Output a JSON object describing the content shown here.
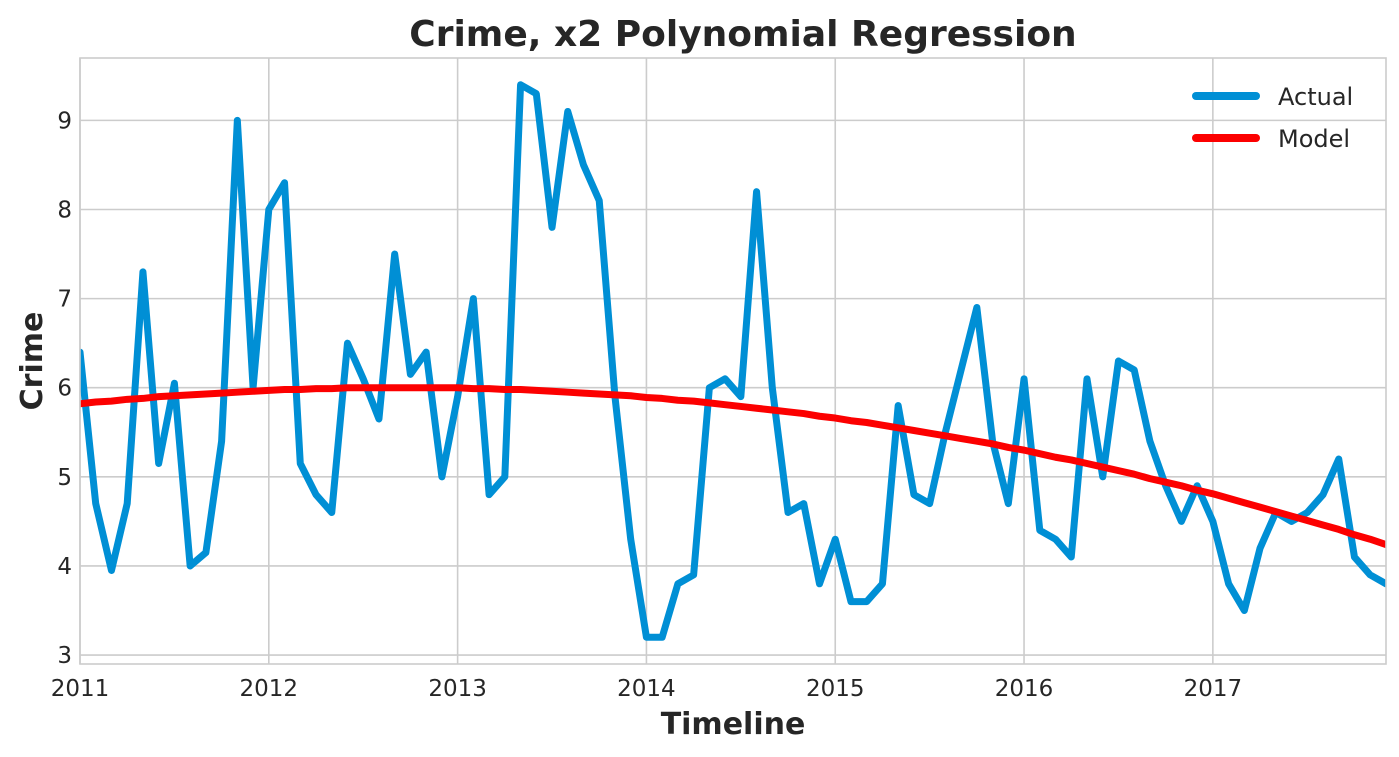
{
  "chart_data": {
    "type": "line",
    "title": "Crime, x2 Polynomial Regression",
    "xlabel": "Timeline",
    "ylabel": "Crime",
    "xlim": [
      2011.0,
      2017.917
    ],
    "ylim": [
      2.9,
      9.7
    ],
    "grid": true,
    "legend_position": "top-right",
    "x_ticks": [
      2011,
      2012,
      2013,
      2014,
      2015,
      2016,
      2017
    ],
    "x_tick_labels": [
      "2011",
      "2012",
      "2013",
      "2014",
      "2015",
      "2016",
      "2017"
    ],
    "y_ticks": [
      3,
      4,
      5,
      6,
      7,
      8,
      9
    ],
    "y_tick_labels": [
      "3",
      "4",
      "5",
      "6",
      "7",
      "8",
      "9"
    ],
    "x_start_year": 2011,
    "x_step_months": 1,
    "series": [
      {
        "name": "Actual",
        "color": "#008fd5",
        "values": [
          6.4,
          4.7,
          3.95,
          4.7,
          7.3,
          5.15,
          6.05,
          4.0,
          4.15,
          5.4,
          9.0,
          6.0,
          8.0,
          8.3,
          5.15,
          4.8,
          4.6,
          6.5,
          6.1,
          5.65,
          7.5,
          6.15,
          6.4,
          5.0,
          5.9,
          7.0,
          4.8,
          5.0,
          9.4,
          9.3,
          7.8,
          9.1,
          8.5,
          8.1,
          5.9,
          4.3,
          3.2,
          3.2,
          3.8,
          3.9,
          6.0,
          6.1,
          5.9,
          8.2,
          6.0,
          4.6,
          4.7,
          3.8,
          4.3,
          3.6,
          3.6,
          3.8,
          5.8,
          4.8,
          4.7,
          5.5,
          6.2,
          6.9,
          5.4,
          4.7,
          6.1,
          4.4,
          4.3,
          4.1,
          6.1,
          5.0,
          6.3,
          6.2,
          5.4,
          4.9,
          4.5,
          4.9,
          4.5,
          3.8,
          3.5,
          4.2,
          4.6,
          4.5,
          4.6,
          4.8,
          5.2,
          4.1,
          3.9,
          3.8
        ]
      },
      {
        "name": "Model",
        "color": "#fc0000",
        "values": [
          5.82,
          5.84,
          5.85,
          5.87,
          5.88,
          5.9,
          5.91,
          5.92,
          5.93,
          5.94,
          5.95,
          5.96,
          5.97,
          5.98,
          5.98,
          5.99,
          5.99,
          6.0,
          6.0,
          6.0,
          6.0,
          6.0,
          6.0,
          6.0,
          6.0,
          5.99,
          5.99,
          5.98,
          5.98,
          5.97,
          5.96,
          5.95,
          5.94,
          5.93,
          5.92,
          5.91,
          5.89,
          5.88,
          5.86,
          5.85,
          5.83,
          5.81,
          5.79,
          5.77,
          5.75,
          5.73,
          5.71,
          5.68,
          5.66,
          5.63,
          5.61,
          5.58,
          5.55,
          5.52,
          5.49,
          5.46,
          5.43,
          5.4,
          5.37,
          5.33,
          5.3,
          5.26,
          5.22,
          5.19,
          5.15,
          5.11,
          5.07,
          5.03,
          4.98,
          4.94,
          4.9,
          4.85,
          4.81,
          4.76,
          4.71,
          4.66,
          4.61,
          4.56,
          4.51,
          4.46,
          4.41,
          4.35,
          4.3,
          4.24
        ]
      }
    ]
  }
}
